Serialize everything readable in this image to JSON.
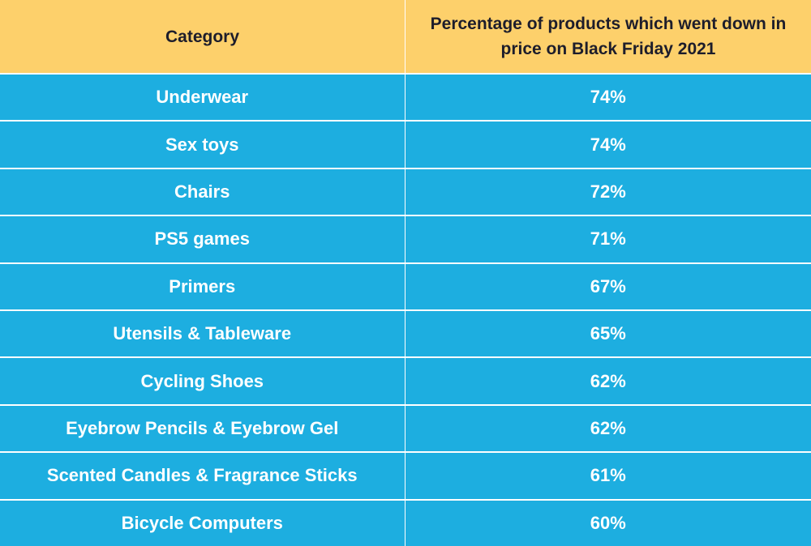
{
  "chart_data": {
    "type": "table",
    "columns": [
      "Category",
      "Percentage of products which went down in price on Black Friday 2021"
    ],
    "rows": [
      {
        "category": "Underwear",
        "value": "74%"
      },
      {
        "category": "Sex toys",
        "value": "74%"
      },
      {
        "category": "Chairs",
        "value": "72%"
      },
      {
        "category": "PS5 games",
        "value": "71%"
      },
      {
        "category": "Primers",
        "value": "67%"
      },
      {
        "category": "Utensils & Tableware",
        "value": "65%"
      },
      {
        "category": "Cycling Shoes",
        "value": "62%"
      },
      {
        "category": "Eyebrow Pencils & Eyebrow Gel",
        "value": "62%"
      },
      {
        "category": "Scented Candles & Fragrance Sticks",
        "value": "61%"
      },
      {
        "category": "Bicycle Computers",
        "value": "60%"
      }
    ]
  },
  "colors": {
    "header_bg": "#fdd06b",
    "body_bg": "#1daee0",
    "header_text": "#1d1d2b",
    "body_text": "#ffffff",
    "grid": "#ffffff"
  }
}
